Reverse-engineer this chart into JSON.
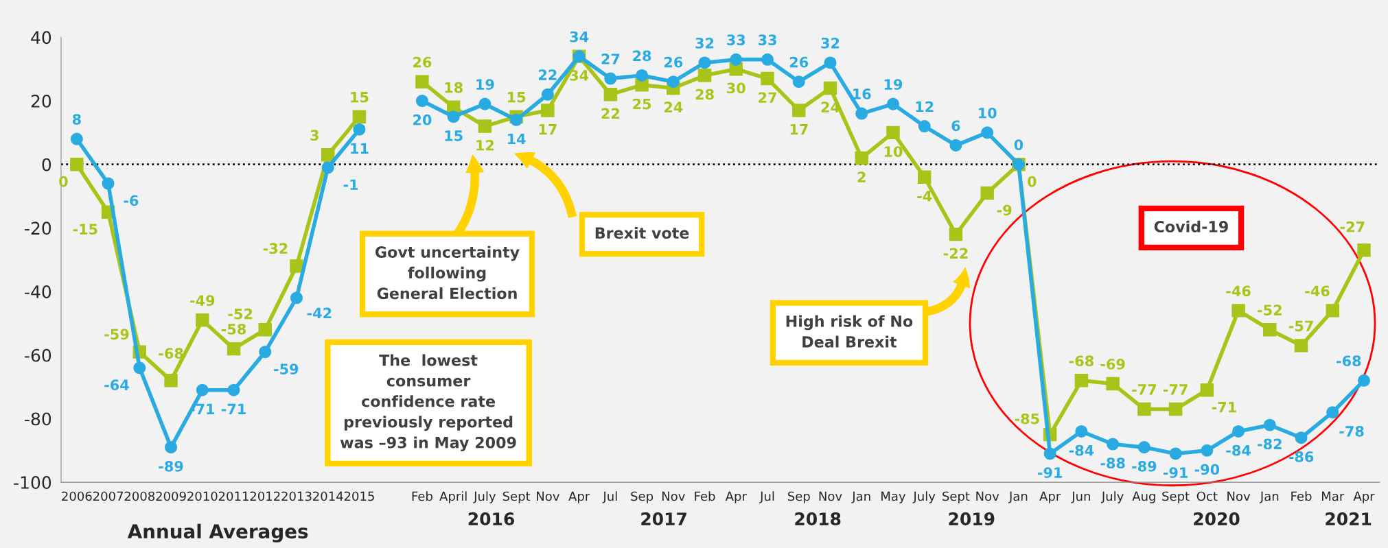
{
  "chart_data": {
    "type": "line",
    "categories": [
      "2006",
      "2007",
      "2008",
      "2009",
      "2010",
      "2011",
      "2012",
      "2013",
      "2014",
      "2015",
      null,
      "Feb",
      "April",
      "July",
      "Sept",
      "Nov",
      "Apr",
      "Jul",
      "Sep",
      "Nov",
      "Feb",
      "Apr",
      "Jul",
      "Sep",
      "Nov",
      "Jan",
      "May",
      "July",
      "Sept",
      "Nov",
      "Jan",
      "Apr",
      "Jun",
      "July",
      "Aug",
      "Sept",
      "Oct",
      "Nov",
      "Jan",
      "Feb",
      "Mar",
      "Apr"
    ],
    "series": [
      {
        "color": "#29abe2",
        "marker": "circle",
        "values": [
          8,
          -6,
          -64,
          -89,
          -71,
          -71,
          -59,
          -42,
          -1,
          11,
          null,
          20,
          15,
          19,
          14,
          22,
          34,
          27,
          28,
          26,
          32,
          33,
          33,
          26,
          32,
          16,
          19,
          12,
          6,
          10,
          0,
          -91,
          -84,
          -88,
          -89,
          -91,
          -90,
          -84,
          -82,
          -86,
          -78,
          -68
        ]
      },
      {
        "color": "#a8c418",
        "marker": "square",
        "values": [
          0,
          -15,
          -59,
          -68,
          -49,
          -58,
          -52,
          -32,
          3,
          15,
          null,
          26,
          18,
          12,
          15,
          17,
          34,
          22,
          25,
          24,
          28,
          30,
          27,
          17,
          24,
          2,
          10,
          -4,
          -22,
          -9,
          0,
          -85,
          -68,
          -69,
          -77,
          -77,
          -71,
          -46,
          -52,
          -57,
          -46,
          -27
        ]
      }
    ],
    "ylim": [
      -100,
      40
    ],
    "yticks": [
      -100,
      -80,
      -60,
      -40,
      -20,
      0,
      20,
      40
    ],
    "ref_lines": [
      {
        "axis": "y",
        "value": 0,
        "color": "#000000",
        "line_style": "dotted"
      }
    ],
    "data_labels": true,
    "grid": false,
    "legend": false,
    "line_style": "solid",
    "annotations": [
      "Annual Averages",
      "2016",
      "2017",
      "2018",
      "2019",
      "2020",
      "2021",
      "Govt uncertainty\nfollowing\nGeneral Election",
      "Brexit vote",
      "The  lowest\nconsumer\nconfidence rate\npreviously reported\nwas –93 in May 2009",
      "High risk of No\nDeal Brexit",
      "Covid-19"
    ]
  }
}
